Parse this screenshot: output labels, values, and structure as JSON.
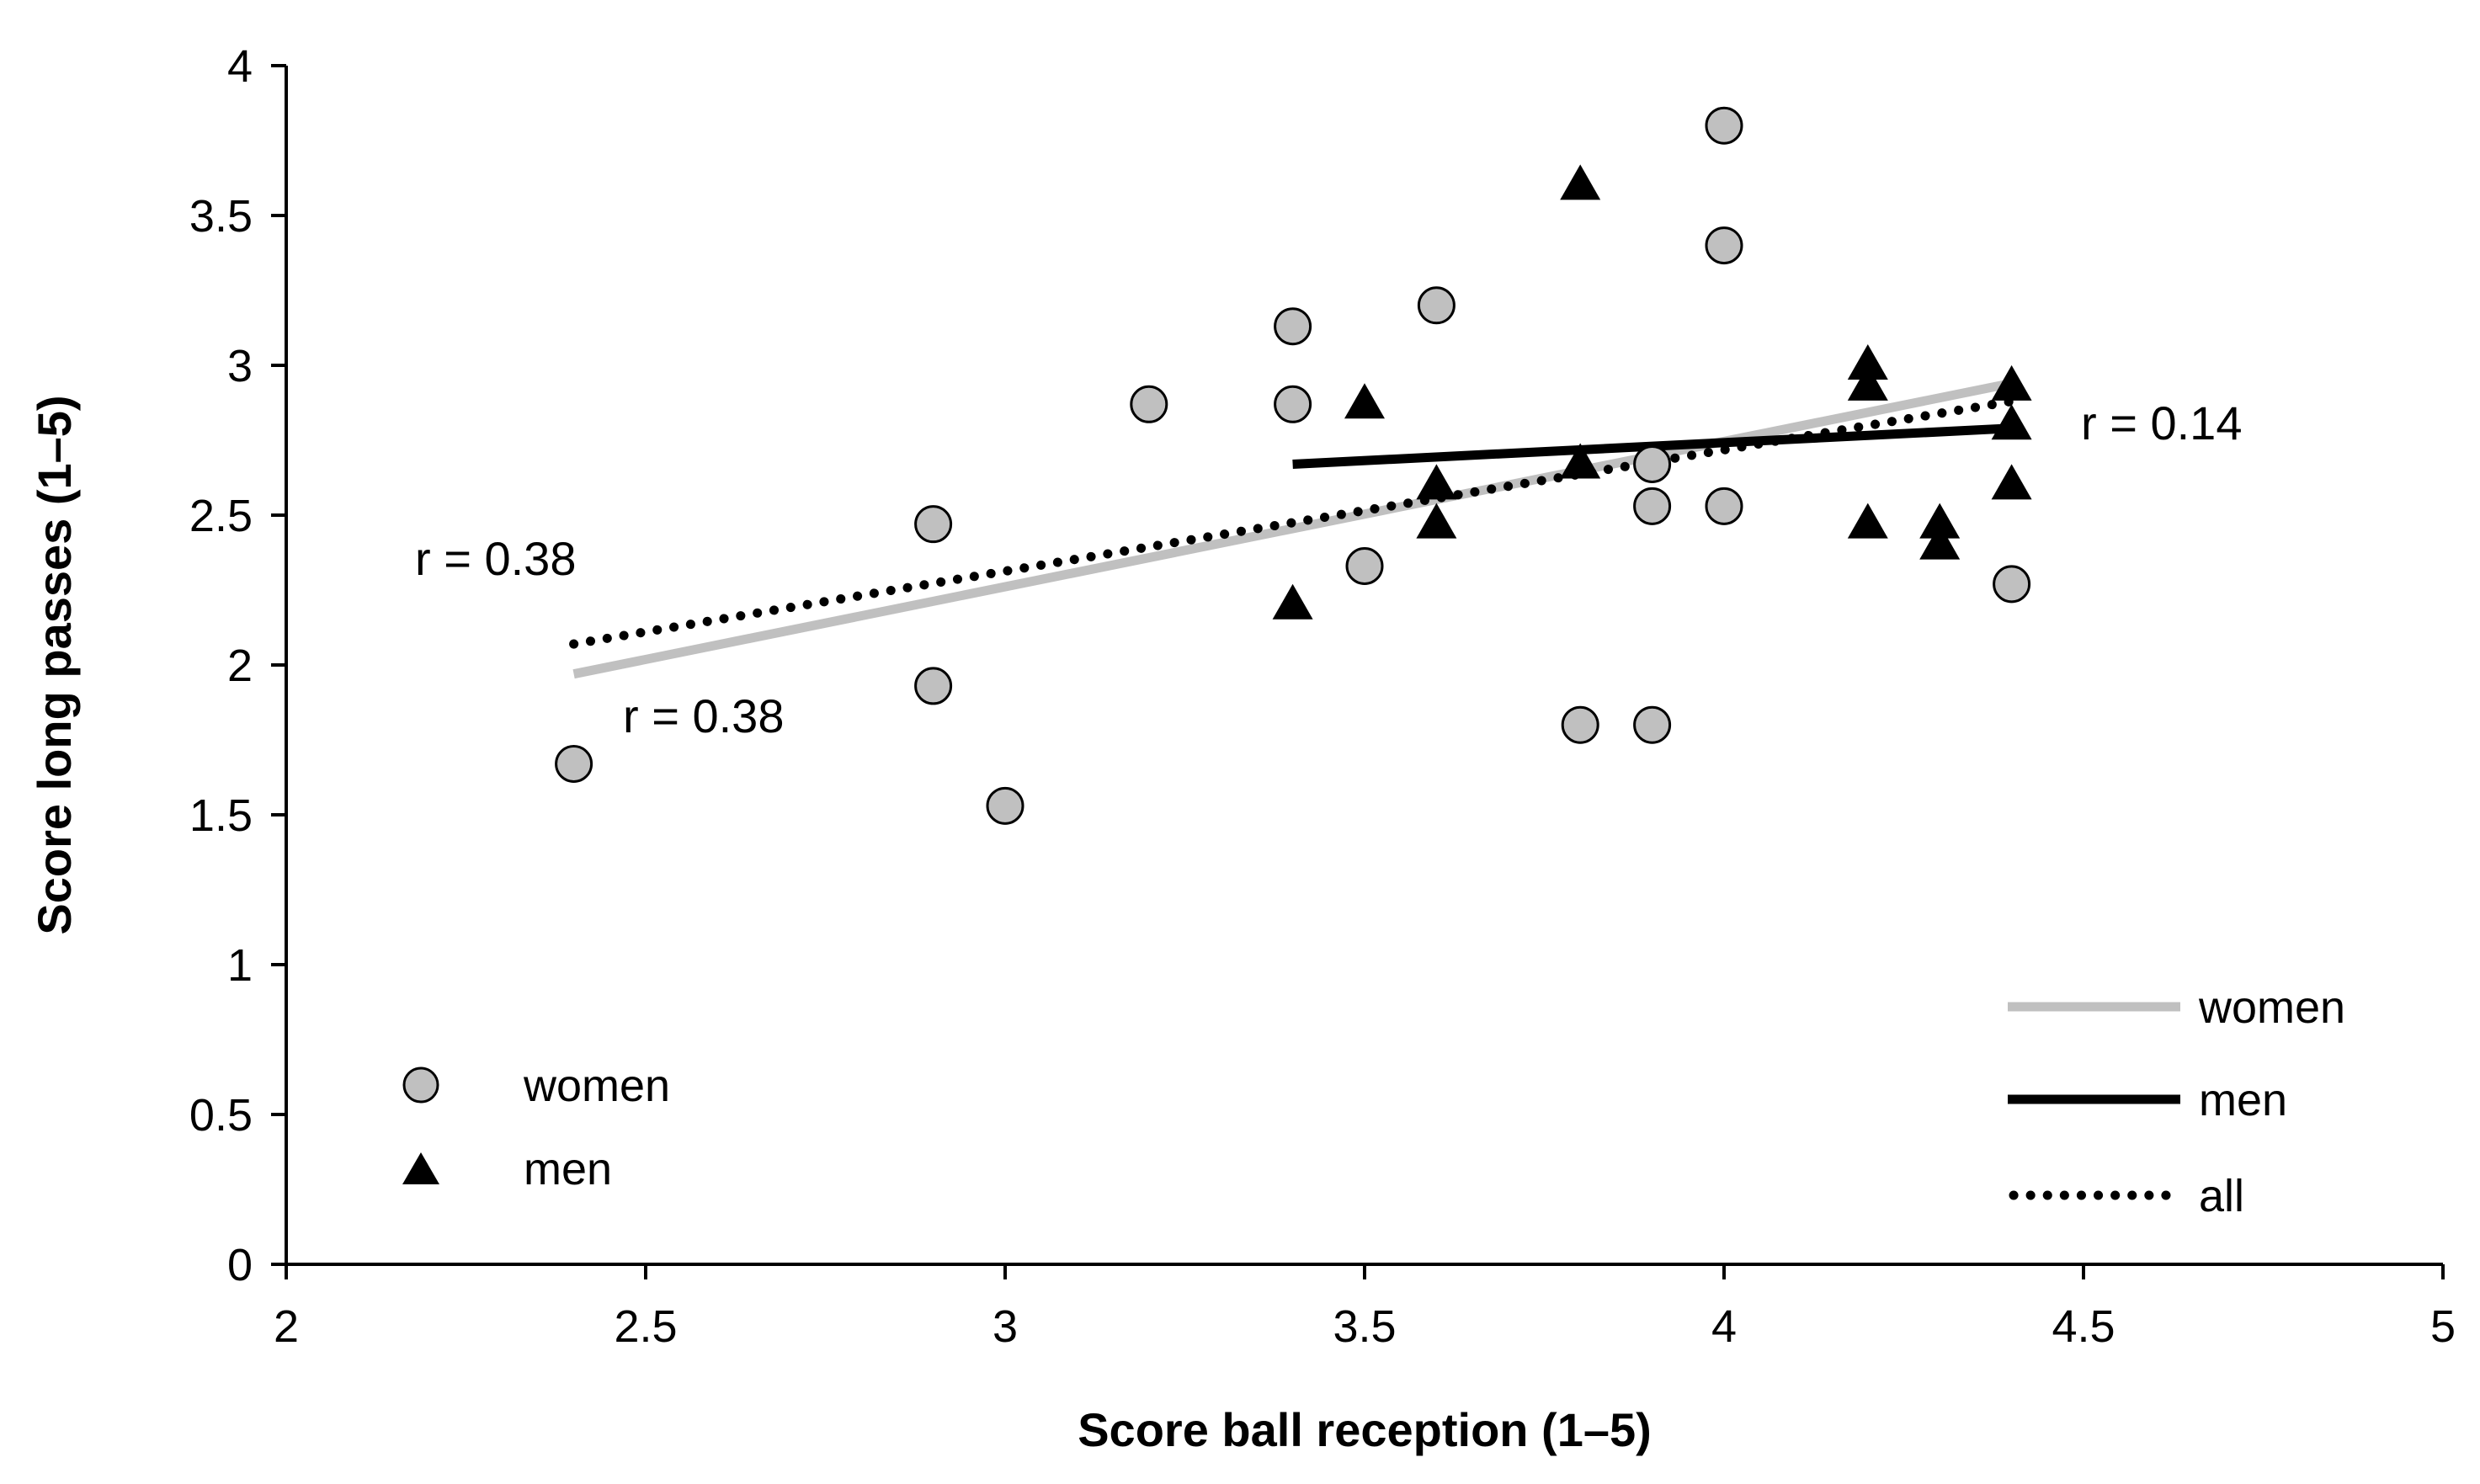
{
  "chart_data": {
    "type": "scatter",
    "title": "",
    "xlabel": "Score ball reception (1–5)",
    "ylabel": "Score long passes (1–5)",
    "xlim": [
      2,
      5
    ],
    "ylim": [
      0,
      4
    ],
    "x_ticks": [
      2,
      2.5,
      3,
      3.5,
      4,
      4.5,
      5
    ],
    "x_tick_labels": [
      "2",
      "2.5",
      "3",
      "3.5",
      "4",
      "4.5",
      "5"
    ],
    "y_ticks": [
      0,
      0.5,
      1,
      1.5,
      2,
      2.5,
      3,
      3.5,
      4
    ],
    "y_tick_labels": [
      "0",
      "0.5",
      "1",
      "1.5",
      "2",
      "2.5",
      "3",
      "3.5",
      "4"
    ],
    "grid": false,
    "series": [
      {
        "name": "women",
        "marker": "circle",
        "color": "#c0c0c0",
        "points": [
          [
            2.4,
            1.67
          ],
          [
            2.9,
            2.47
          ],
          [
            2.9,
            1.93
          ],
          [
            3.0,
            1.53
          ],
          [
            3.2,
            2.87
          ],
          [
            3.4,
            3.13
          ],
          [
            3.4,
            2.87
          ],
          [
            3.5,
            2.33
          ],
          [
            3.6,
            3.2
          ],
          [
            3.8,
            1.8
          ],
          [
            3.9,
            2.67
          ],
          [
            3.9,
            2.53
          ],
          [
            3.9,
            1.8
          ],
          [
            4.0,
            3.8
          ],
          [
            4.0,
            3.4
          ],
          [
            4.0,
            2.53
          ],
          [
            4.4,
            2.27
          ]
        ]
      },
      {
        "name": "men",
        "marker": "triangle",
        "color": "#000000",
        "points": [
          [
            3.4,
            2.2
          ],
          [
            3.5,
            2.87
          ],
          [
            3.6,
            2.6
          ],
          [
            3.6,
            2.47
          ],
          [
            3.8,
            3.6
          ],
          [
            3.8,
            2.67
          ],
          [
            4.2,
            3.0
          ],
          [
            4.2,
            2.93
          ],
          [
            4.2,
            2.47
          ],
          [
            4.3,
            2.47
          ],
          [
            4.3,
            2.4
          ],
          [
            4.4,
            2.93
          ],
          [
            4.4,
            2.8
          ],
          [
            4.4,
            2.6
          ]
        ]
      }
    ],
    "trendlines": [
      {
        "name": "women",
        "style": "solid",
        "color": "#c0c0c0",
        "x": [
          2.4,
          4.4
        ],
        "y": [
          1.97,
          2.94
        ]
      },
      {
        "name": "men",
        "style": "solid",
        "color": "#000000",
        "x": [
          3.4,
          4.4
        ],
        "y": [
          2.67,
          2.79
        ]
      },
      {
        "name": "all",
        "style": "dotted",
        "color": "#000000",
        "x": [
          2.4,
          4.4
        ],
        "y": [
          2.07,
          2.88
        ]
      }
    ],
    "annotations": [
      {
        "id": "r-all",
        "text": "r = 0.38"
      },
      {
        "id": "r-women",
        "text": "r = 0.38"
      },
      {
        "id": "r-men",
        "text": "r = 0.14"
      }
    ],
    "legend_markers": {
      "position": "bottom-left",
      "entries": [
        {
          "label": "women",
          "marker": "circle"
        },
        {
          "label": "men",
          "marker": "triangle"
        }
      ]
    },
    "legend_lines": {
      "position": "bottom-right",
      "entries": [
        {
          "label": "women",
          "style": "solid",
          "color": "#c0c0c0"
        },
        {
          "label": "men",
          "style": "solid",
          "color": "#000000"
        },
        {
          "label": "all",
          "style": "dotted",
          "color": "#000000"
        }
      ]
    }
  }
}
